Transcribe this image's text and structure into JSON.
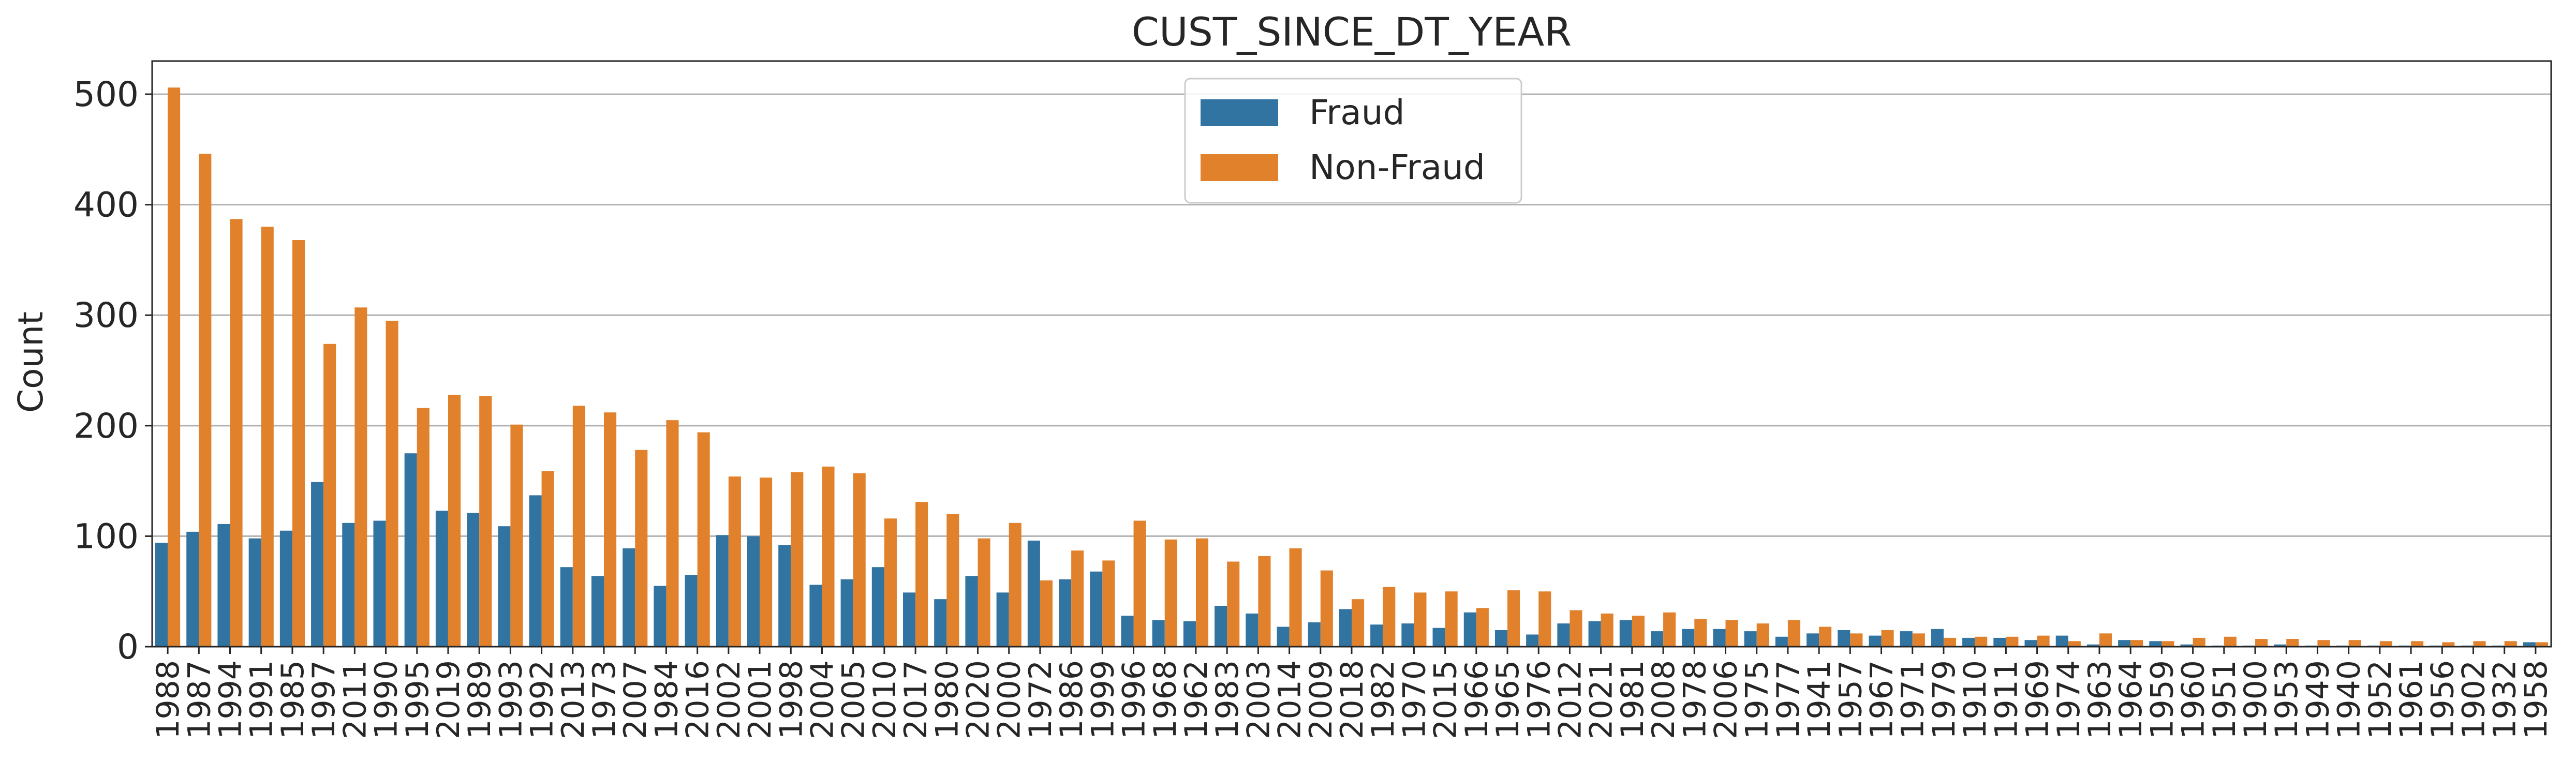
{
  "chart_data": {
    "type": "bar",
    "title": "CUST_SINCE_DT_YEAR",
    "xlabel": "",
    "ylabel": "Count",
    "ylim": [
      0,
      530
    ],
    "yticks": [
      0,
      100,
      200,
      300,
      400,
      500
    ],
    "grid": true,
    "legend_position": "top-center",
    "categories": [
      "1988",
      "1987",
      "1994",
      "1991",
      "1985",
      "1997",
      "2011",
      "1990",
      "1995",
      "2019",
      "1989",
      "1993",
      "1992",
      "2013",
      "1973",
      "2007",
      "1984",
      "2016",
      "2002",
      "2001",
      "1998",
      "2004",
      "2005",
      "2010",
      "2017",
      "1980",
      "2020",
      "2000",
      "1972",
      "1986",
      "1999",
      "1996",
      "1968",
      "1962",
      "1983",
      "2003",
      "2014",
      "2009",
      "2018",
      "1982",
      "1970",
      "2015",
      "1966",
      "1965",
      "1976",
      "2012",
      "2021",
      "1981",
      "2008",
      "1978",
      "2006",
      "1975",
      "1977",
      "1941",
      "1957",
      "1967",
      "1971",
      "1979",
      "1910",
      "1911",
      "1969",
      "1974",
      "1963",
      "1964",
      "1959",
      "1960",
      "1951",
      "1900",
      "1953",
      "1949",
      "1940",
      "1952",
      "1961",
      "1956",
      "1902",
      "1932",
      "1958"
    ],
    "series": [
      {
        "name": "Fraud",
        "color": "#3274a1",
        "values": [
          94,
          104,
          111,
          98,
          105,
          149,
          112,
          114,
          175,
          123,
          121,
          109,
          137,
          72,
          64,
          89,
          55,
          65,
          101,
          100,
          92,
          56,
          61,
          72,
          49,
          43,
          64,
          49,
          96,
          61,
          68,
          28,
          24,
          23,
          37,
          30,
          18,
          22,
          34,
          20,
          21,
          17,
          31,
          15,
          11,
          21,
          23,
          24,
          14,
          16,
          16,
          14,
          9,
          12,
          15,
          10,
          14,
          16,
          8,
          8,
          6,
          10,
          2,
          6,
          5,
          2,
          1,
          1,
          2,
          1,
          1,
          1,
          1,
          1,
          1,
          1,
          4
        ],
        "legend": "Fraud"
      },
      {
        "name": "Non-Fraud",
        "color": "#e1812c",
        "values": [
          506,
          446,
          387,
          380,
          368,
          274,
          307,
          295,
          216,
          228,
          227,
          201,
          159,
          218,
          212,
          178,
          205,
          194,
          154,
          153,
          158,
          163,
          157,
          116,
          131,
          120,
          98,
          112,
          60,
          87,
          78,
          114,
          97,
          98,
          77,
          82,
          89,
          69,
          43,
          54,
          49,
          50,
          35,
          51,
          50,
          33,
          30,
          28,
          31,
          25,
          24,
          21,
          24,
          18,
          12,
          15,
          12,
          8,
          9,
          9,
          10,
          5,
          12,
          6,
          5,
          8,
          9,
          7,
          7,
          6,
          6,
          5,
          5,
          4,
          5,
          5,
          4
        ]
      }
    ]
  }
}
